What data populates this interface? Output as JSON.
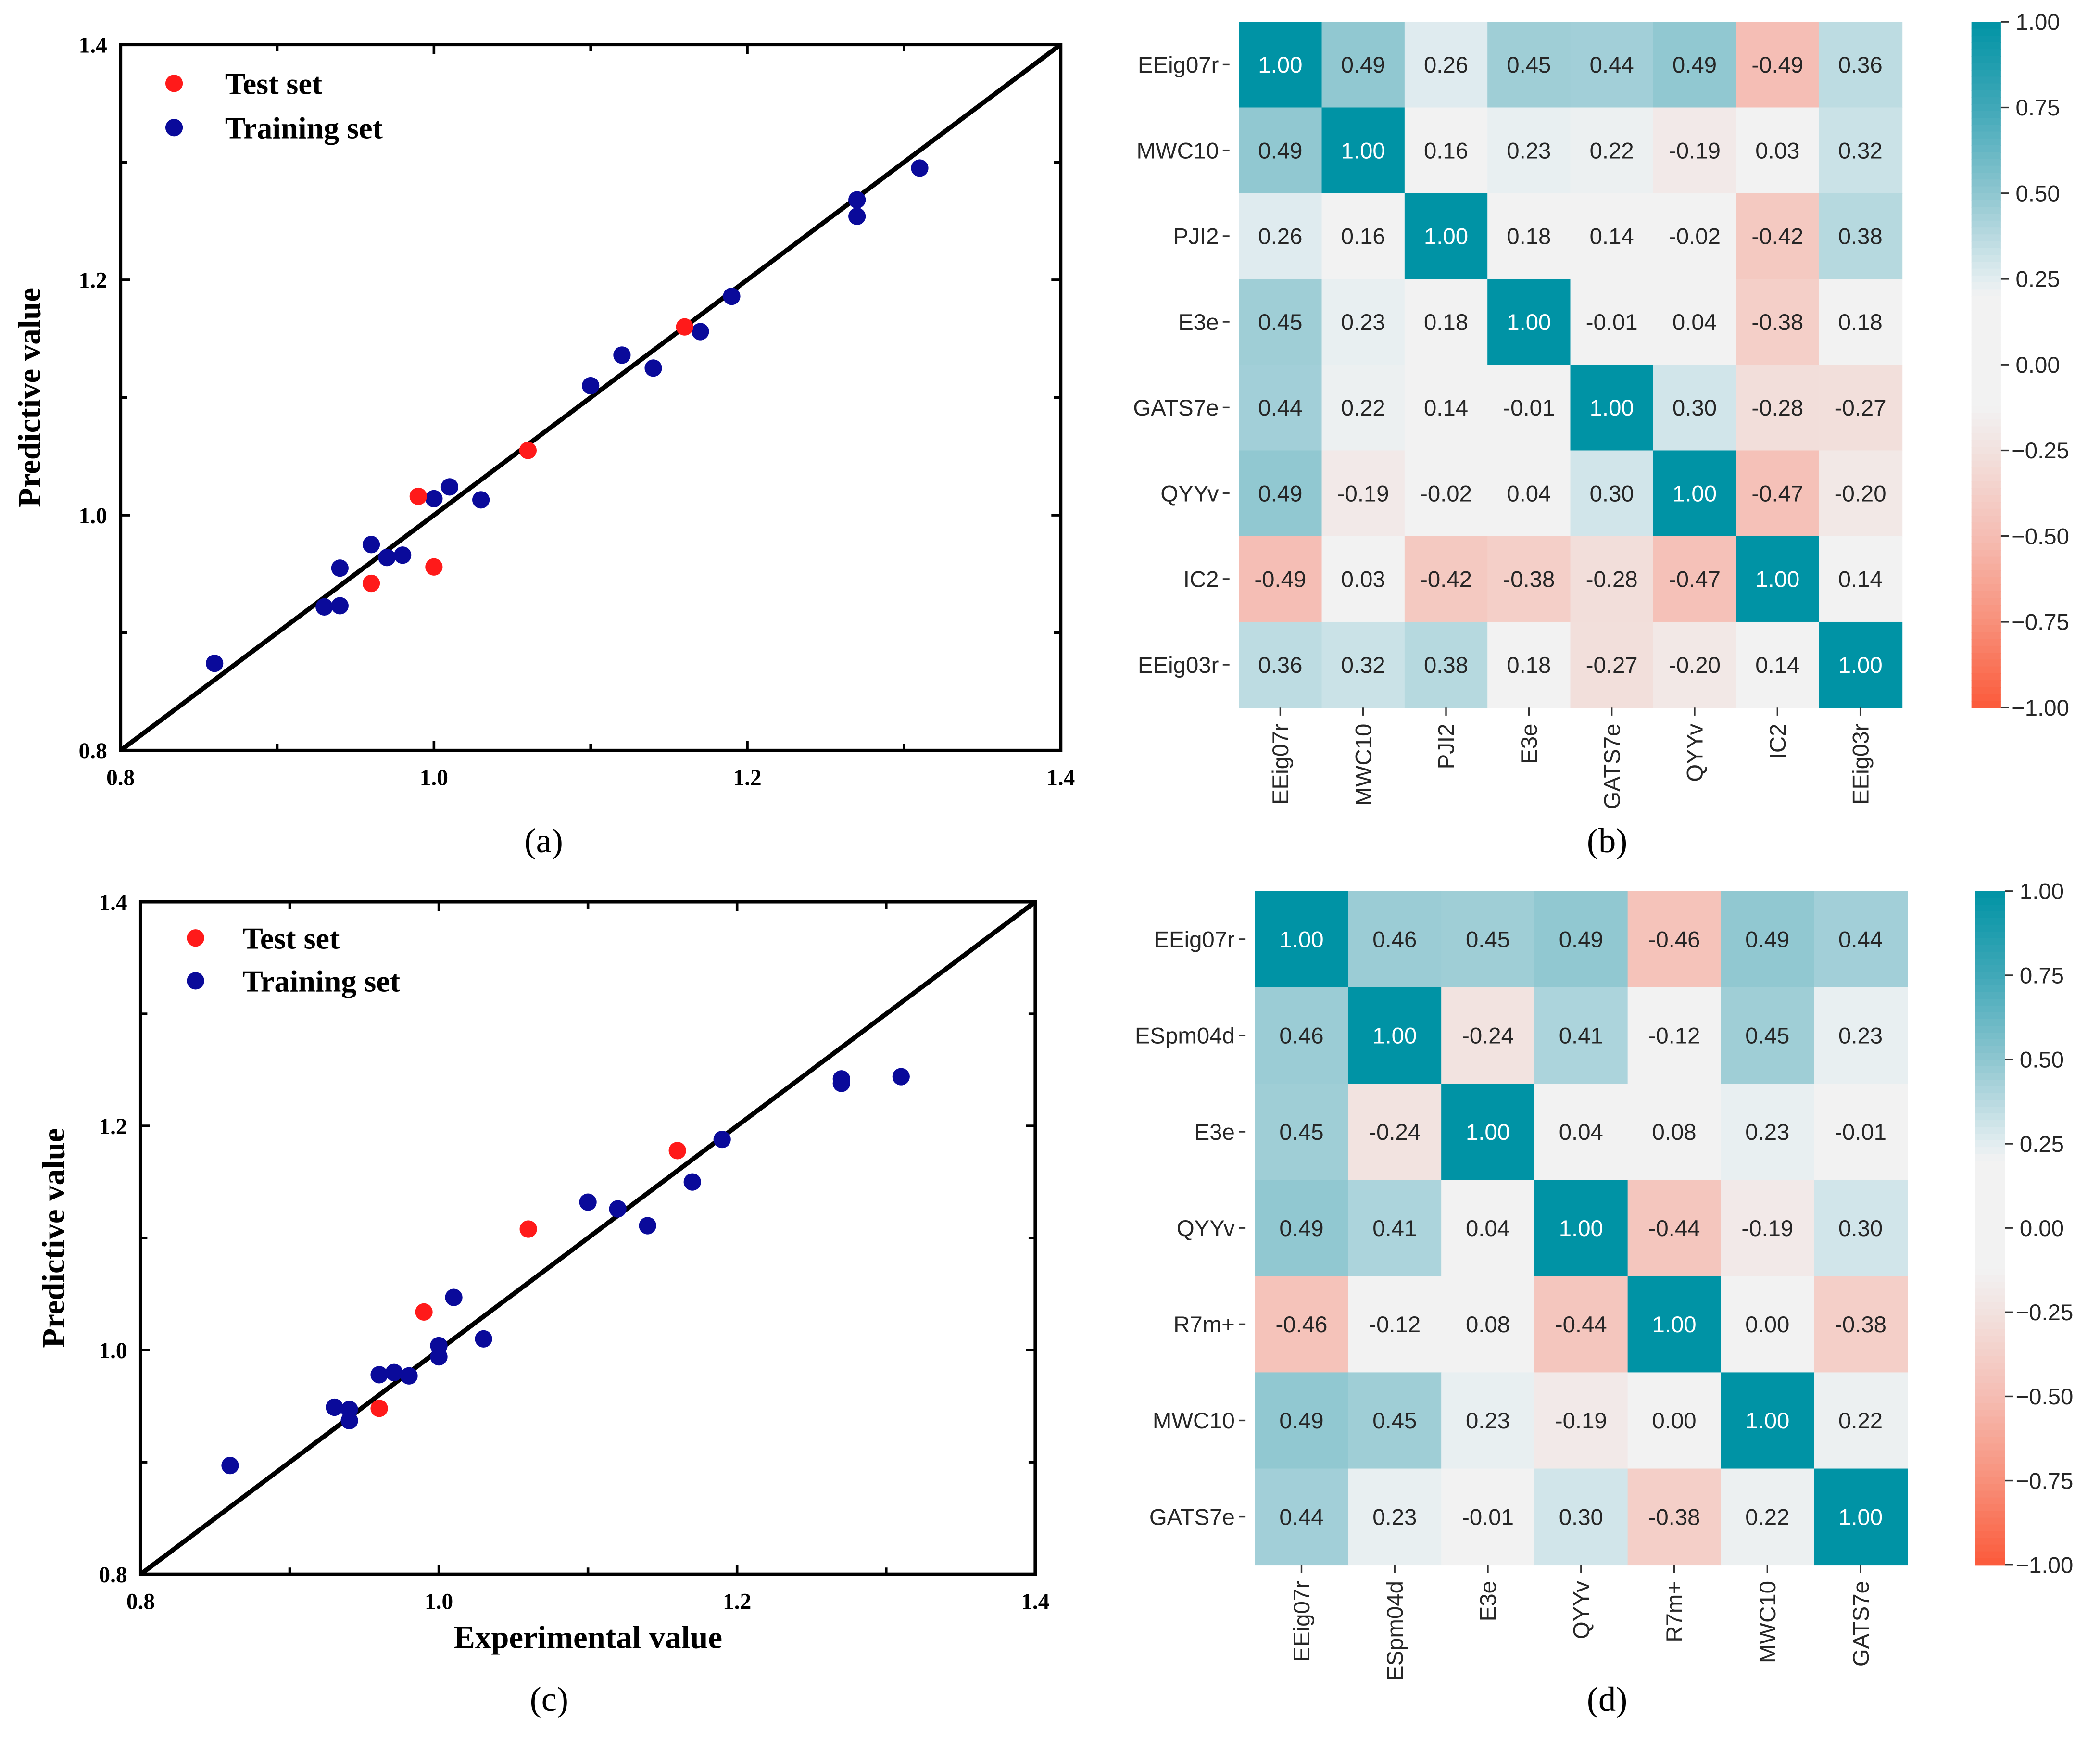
{
  "chart_data": [
    {
      "type": "scatter",
      "panel_label": "(a)",
      "title": "",
      "xlabel": "",
      "ylabel": "Predictive value",
      "xlim": [
        0.8,
        1.4
      ],
      "ylim": [
        0.8,
        1.4
      ],
      "xticks": [
        "0.8",
        "1.0",
        "1.2",
        "1.4"
      ],
      "yticks": [
        "0.8",
        "1.0",
        "1.2",
        "1.4"
      ],
      "diagonal_line": "y = x",
      "legend_position": "top-left",
      "series": [
        {
          "name": "Test set",
          "color": "#ff1a1a",
          "x": [
            0.96,
            0.99,
            1.0,
            1.06,
            1.16
          ],
          "y": [
            0.942,
            1.016,
            0.956,
            1.055,
            1.16
          ]
        },
        {
          "name": "Training set",
          "color": "#0a0a9a",
          "x": [
            0.86,
            0.93,
            0.94,
            0.94,
            0.96,
            0.97,
            0.98,
            1.0,
            1.01,
            1.03,
            1.1,
            1.12,
            1.14,
            1.17,
            1.19,
            1.27,
            1.27,
            1.31
          ],
          "y": [
            0.874,
            0.922,
            0.923,
            0.955,
            0.975,
            0.964,
            0.966,
            1.014,
            1.024,
            1.013,
            1.11,
            1.136,
            1.125,
            1.156,
            1.186,
            1.268,
            1.254,
            1.295
          ]
        }
      ]
    },
    {
      "type": "heatmap",
      "panel_label": "(b)",
      "labels": [
        "EEig07r",
        "MWC10",
        "PJI2",
        "E3e",
        "GATS7e",
        "QYYv",
        "IC2",
        "EEig03r"
      ],
      "values": [
        [
          1.0,
          0.49,
          0.26,
          0.45,
          0.44,
          0.49,
          -0.49,
          0.36
        ],
        [
          0.49,
          1.0,
          0.16,
          0.23,
          0.22,
          -0.19,
          0.03,
          0.32
        ],
        [
          0.26,
          0.16,
          1.0,
          0.18,
          0.14,
          -0.02,
          -0.42,
          0.38
        ],
        [
          0.45,
          0.23,
          0.18,
          1.0,
          -0.01,
          0.04,
          -0.38,
          0.18
        ],
        [
          0.44,
          0.22,
          0.14,
          -0.01,
          1.0,
          0.3,
          -0.28,
          -0.27
        ],
        [
          0.49,
          -0.19,
          -0.02,
          0.04,
          0.3,
          1.0,
          -0.47,
          -0.2
        ],
        [
          -0.49,
          0.03,
          -0.42,
          -0.38,
          -0.28,
          -0.47,
          1.0,
          0.14
        ],
        [
          0.36,
          0.32,
          0.38,
          0.18,
          -0.27,
          -0.2,
          0.14,
          1.0
        ]
      ],
      "colorbar_ticks": [
        "1.00",
        "0.75",
        "0.50",
        "0.25",
        "0.00",
        "−0.25",
        "−0.50",
        "−0.75",
        "−1.00"
      ],
      "vmin": -1,
      "vmax": 1
    },
    {
      "type": "scatter",
      "panel_label": "(c)",
      "title": "",
      "xlabel": "Experimental value",
      "ylabel": "Predictive value",
      "xlim": [
        0.8,
        1.4
      ],
      "ylim": [
        0.8,
        1.4
      ],
      "xticks": [
        "0.8",
        "1.0",
        "1.2",
        "1.4"
      ],
      "yticks": [
        "0.8",
        "1.0",
        "1.2",
        "1.4"
      ],
      "diagonal_line": "y = x",
      "legend_position": "top-left",
      "series": [
        {
          "name": "Test set",
          "color": "#ff1a1a",
          "x": [
            0.96,
            0.99,
            1.06,
            1.16
          ],
          "y": [
            0.948,
            1.034,
            1.108,
            1.178
          ]
        },
        {
          "name": "Training set",
          "color": "#0a0a9a",
          "x": [
            0.86,
            0.93,
            0.94,
            0.94,
            0.96,
            0.97,
            0.98,
            1.0,
            1.0,
            1.01,
            1.03,
            1.1,
            1.12,
            1.14,
            1.17,
            1.19,
            1.27,
            1.27,
            1.31
          ],
          "y": [
            0.897,
            0.949,
            0.947,
            0.937,
            0.978,
            0.98,
            0.977,
            1.004,
            0.994,
            1.047,
            1.01,
            1.132,
            1.126,
            1.111,
            1.15,
            1.188,
            1.242,
            1.238,
            1.244
          ]
        }
      ]
    },
    {
      "type": "heatmap",
      "panel_label": "(d)",
      "labels": [
        "EEig07r",
        "ESpm04d",
        "E3e",
        "QYYv",
        "R7m+",
        "MWC10",
        "GATS7e"
      ],
      "values": [
        [
          1.0,
          0.46,
          0.45,
          0.49,
          -0.46,
          0.49,
          0.44
        ],
        [
          0.46,
          1.0,
          -0.24,
          0.41,
          -0.12,
          0.45,
          0.23
        ],
        [
          0.45,
          -0.24,
          1.0,
          0.04,
          0.08,
          0.23,
          -0.01
        ],
        [
          0.49,
          0.41,
          0.04,
          1.0,
          -0.44,
          -0.19,
          0.3
        ],
        [
          -0.46,
          -0.12,
          0.08,
          -0.44,
          1.0,
          -0.0,
          -0.38
        ],
        [
          0.49,
          0.45,
          0.23,
          -0.19,
          -0.0,
          1.0,
          0.22
        ],
        [
          0.44,
          0.23,
          -0.01,
          0.3,
          -0.38,
          0.22,
          1.0
        ]
      ],
      "colorbar_ticks": [
        "1.00",
        "0.75",
        "0.50",
        "0.25",
        "0.00",
        "−0.25",
        "−0.50",
        "−0.75",
        "−1.00"
      ],
      "vmin": -1,
      "vmax": 1
    }
  ]
}
